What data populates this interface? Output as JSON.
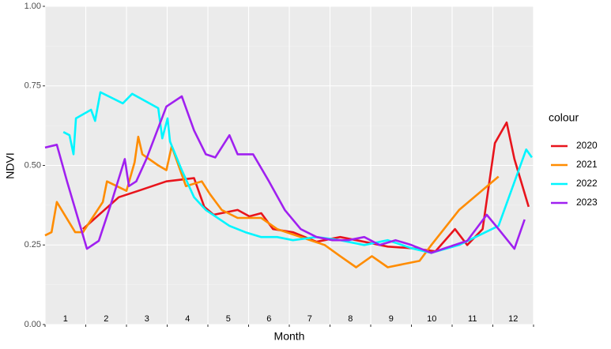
{
  "chart_data": {
    "type": "line",
    "x_label": "Month",
    "y_label": "NDVI",
    "legend_title": "colour",
    "legend": "right",
    "grid": true,
    "categories": [
      "1",
      "2",
      "3",
      "4",
      "5",
      "6",
      "7",
      "8",
      "9",
      "10",
      "11",
      "12"
    ],
    "xlim": [
      0,
      12
    ],
    "xticks": [
      0,
      1,
      2,
      3,
      4,
      5,
      6,
      7,
      8,
      9,
      10,
      11,
      12
    ],
    "ylim": [
      0,
      1
    ],
    "yticks": [
      {
        "value": 0,
        "label": "0.00"
      },
      {
        "value": 0.25,
        "label": "0.25"
      },
      {
        "value": 0.5,
        "label": "0.50"
      },
      {
        "value": 0.75,
        "label": "0.75"
      },
      {
        "value": 1,
        "label": "1.00"
      }
    ],
    "yminor": [
      0.125,
      0.375,
      0.625,
      0.875
    ],
    "series": [
      {
        "name": "2020",
        "color": "#e8141c",
        "x": [
          0.93,
          1.81,
          2.29,
          2.98,
          3.66,
          3.91,
          4.14,
          4.73,
          5.02,
          5.31,
          5.6,
          6.09,
          6.67,
          7.25,
          7.84,
          8.42,
          9.0,
          9.59,
          10.07,
          10.37,
          10.75,
          11.05,
          11.34,
          11.53,
          11.88
        ],
        "values": [
          0.3,
          0.4,
          0.42,
          0.45,
          0.46,
          0.37,
          0.345,
          0.36,
          0.34,
          0.35,
          0.3,
          0.29,
          0.26,
          0.275,
          0.26,
          0.245,
          0.24,
          0.23,
          0.3,
          0.25,
          0.3,
          0.57,
          0.635,
          0.52,
          0.37
        ]
      },
      {
        "name": "2021",
        "color": "#ff8c00",
        "x": [
          0,
          0.16,
          0.29,
          0.74,
          0.93,
          1.42,
          1.52,
          2.0,
          2.2,
          2.29,
          2.39,
          2.78,
          2.98,
          3.11,
          3.46,
          3.85,
          4.05,
          4.34,
          4.73,
          5.31,
          5.7,
          6.28,
          6.87,
          7.25,
          7.64,
          8.03,
          8.42,
          8.81,
          9.2,
          9.49,
          10.17,
          11.14
        ],
        "values": [
          0.28,
          0.29,
          0.385,
          0.29,
          0.29,
          0.385,
          0.45,
          0.42,
          0.51,
          0.59,
          0.535,
          0.5,
          0.485,
          0.56,
          0.435,
          0.45,
          0.41,
          0.36,
          0.335,
          0.335,
          0.3,
          0.275,
          0.25,
          0.215,
          0.18,
          0.215,
          0.18,
          0.19,
          0.2,
          0.25,
          0.36,
          0.465
        ]
      },
      {
        "name": "2022",
        "color": "#00f5ff",
        "x": [
          0.45,
          0.6,
          0.7,
          0.76,
          1.13,
          1.23,
          1.36,
          1.91,
          2.14,
          2.78,
          2.88,
          3.01,
          3.07,
          3.36,
          3.66,
          3.95,
          4.53,
          4.92,
          5.31,
          5.7,
          6.09,
          6.67,
          7.25,
          7.84,
          8.42,
          9.0,
          9.49,
          10.17,
          11.14,
          11.82,
          11.96
        ],
        "values": [
          0.605,
          0.595,
          0.535,
          0.648,
          0.675,
          0.64,
          0.73,
          0.695,
          0.725,
          0.68,
          0.585,
          0.648,
          0.575,
          0.485,
          0.4,
          0.36,
          0.31,
          0.29,
          0.275,
          0.275,
          0.265,
          0.275,
          0.265,
          0.25,
          0.265,
          0.24,
          0.225,
          0.25,
          0.31,
          0.55,
          0.525
        ]
      },
      {
        "name": "2023",
        "color": "#a020f0",
        "x": [
          0,
          0.29,
          0.54,
          1.03,
          1.32,
          1.61,
          1.96,
          2.06,
          2.24,
          2.49,
          2.98,
          3.36,
          3.66,
          3.95,
          4.18,
          4.53,
          4.73,
          5.11,
          5.5,
          5.89,
          6.28,
          6.67,
          7.06,
          7.45,
          7.84,
          8.22,
          8.61,
          9.0,
          9.49,
          9.78,
          10.37,
          10.85,
          11.14,
          11.53,
          11.78
        ],
        "values": [
          0.556,
          0.565,
          0.45,
          0.238,
          0.263,
          0.375,
          0.52,
          0.435,
          0.45,
          0.52,
          0.685,
          0.717,
          0.61,
          0.535,
          0.525,
          0.595,
          0.535,
          0.535,
          0.45,
          0.36,
          0.3,
          0.275,
          0.265,
          0.265,
          0.275,
          0.25,
          0.265,
          0.25,
          0.225,
          0.238,
          0.263,
          0.345,
          0.3,
          0.238,
          0.33
        ]
      }
    ]
  }
}
